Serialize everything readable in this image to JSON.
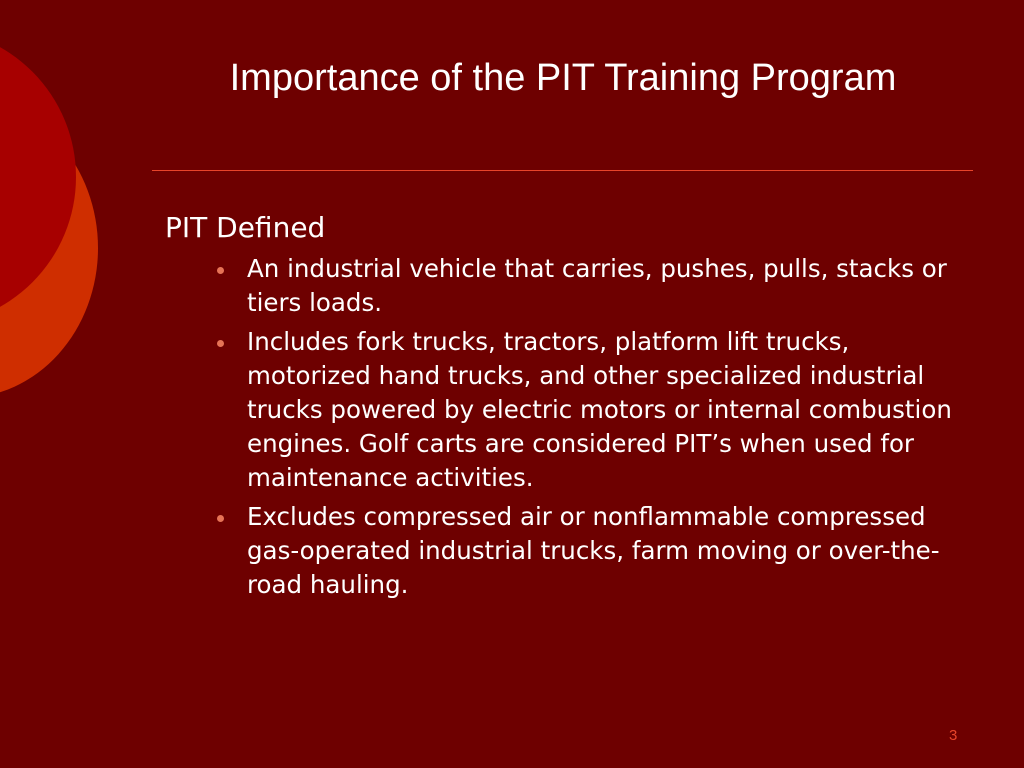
{
  "slide": {
    "title": "Importance of the PIT Training Program",
    "heading": "PIT Defined",
    "bullets": [
      "An industrial vehicle that carries, pushes, pulls, stacks or tiers loads.",
      "Includes fork trucks, tractors, platform lift trucks, motorized hand trucks, and other specialized industrial trucks powered by electric motors or internal combustion engines. Golf carts are considered PIT’s when used for maintenance activities.",
      "Excludes compressed air or nonflammable compressed gas-operated industrial trucks, farm moving or over-the-road hauling."
    ],
    "page_number": "3"
  },
  "colors": {
    "background": "#6e0000",
    "accent_circle_outer": "#cf2e00",
    "accent_circle_inner": "#a70000",
    "divider": "#e8442a",
    "bullet_marker": "#e67356",
    "page_number": "#e8442a",
    "text": "#ffffff"
  }
}
